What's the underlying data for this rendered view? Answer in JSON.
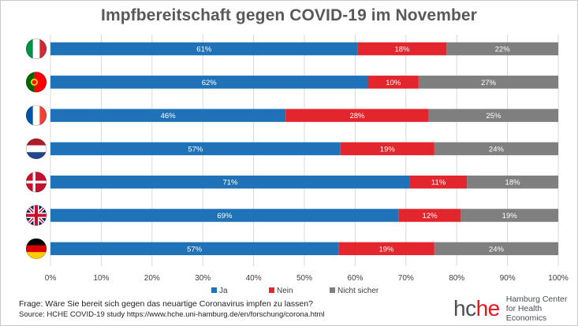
{
  "chart_data": {
    "type": "bar",
    "orientation": "horizontal",
    "stacked": true,
    "title": "Impfbereitschaft gegen COVID-19 im November",
    "categories": [
      "Italien",
      "Portugal",
      "Frankreich",
      "Niederlande",
      "Dänemark",
      "Vereinigtes Königreich",
      "Deutschland"
    ],
    "series": [
      {
        "name": "Ja",
        "color": "#1f72b8",
        "values": [
          61,
          62,
          46,
          57,
          71,
          69,
          57
        ],
        "plot_values": [
          60.5,
          62.5,
          46.3,
          57.1,
          70.8,
          68.6,
          56.7
        ]
      },
      {
        "name": "Nein",
        "color": "#e3262d",
        "values": [
          18,
          10,
          28,
          19,
          11,
          12,
          19
        ],
        "plot_values": [
          17.5,
          10.0,
          28.2,
          18.5,
          11.2,
          12.2,
          18.9
        ]
      },
      {
        "name": "Nicht sicher",
        "color": "#7f7f7f",
        "values": [
          22,
          27,
          25,
          24,
          18,
          19,
          24
        ],
        "plot_values": [
          22.0,
          27.5,
          25.5,
          24.4,
          18.0,
          19.2,
          24.4
        ]
      }
    ],
    "xlim": [
      0,
      100
    ],
    "xticks": [
      "0%",
      "10%",
      "20%",
      "30%",
      "40%",
      "50%",
      "60%",
      "70%",
      "80%",
      "90%",
      "100%"
    ],
    "grid": true,
    "legend": "bottom"
  },
  "flags": [
    {
      "country": "Italien",
      "colors": [
        "#009246",
        "#ffffff",
        "#ce2b37"
      ]
    },
    {
      "country": "Portugal",
      "colors": [
        "#006600",
        "#ff0000",
        "#ffcc00"
      ]
    },
    {
      "country": "Frankreich",
      "colors": [
        "#0055a4",
        "#ffffff",
        "#ef4135"
      ]
    },
    {
      "country": "Niederlande",
      "colors": [
        "#ae1c28",
        "#ffffff",
        "#21468b"
      ]
    },
    {
      "country": "Dänemark",
      "colors": [
        "#c8102e",
        "#ffffff"
      ]
    },
    {
      "country": "Vereinigtes Königreich",
      "colors": [
        "#012169",
        "#ffffff",
        "#c8102e"
      ]
    },
    {
      "country": "Deutschland",
      "colors": [
        "#000000",
        "#dd0000",
        "#ffce00"
      ]
    }
  ],
  "footer": {
    "question": "Frage: Wäre Sie bereit sich gegen das neuartige Coronavirus impfen zu lassen?",
    "source": "Source: HCHE COVID-19 study https://www.hche.uni-hamburg.de/en/forschung/corona.html"
  },
  "logo": {
    "part1": "hc",
    "part2": "he",
    "line1": "Hamburg Center",
    "line2": "for Health Economics"
  }
}
